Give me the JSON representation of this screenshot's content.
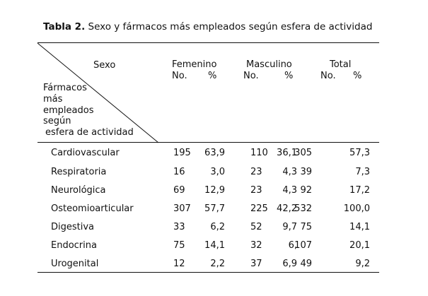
{
  "caption": {
    "label": "Tabla 2.",
    "text": "Sexo y fármacos más empleados según esfera de actividad"
  },
  "header": {
    "corner_top": "Sexo",
    "corner_bottom": [
      "Fármacos",
      "más",
      "empleados",
      "según",
      "esfera de actividad"
    ],
    "groups": [
      {
        "name": "Femenino",
        "no": "No.",
        "pct": "%"
      },
      {
        "name": "Masculino",
        "no": "No.",
        "pct": "%"
      },
      {
        "name": "Total",
        "no": "No.",
        "pct": "%"
      }
    ]
  },
  "rows": [
    {
      "label": "Cardiovascular",
      "cells": [
        "195",
        "63,9",
        "110",
        "36,1",
        "305",
        "57,3"
      ]
    },
    {
      "label": "Respiratoria",
      "cells": [
        "16",
        "3,0",
        "23",
        "4,3",
        "39",
        "7,3"
      ]
    },
    {
      "label": "Neurológica",
      "cells": [
        "69",
        "12,9",
        "23",
        "4,3",
        "92",
        "17,2"
      ]
    },
    {
      "label": "Osteomioarticular",
      "cells": [
        "307",
        "57,7",
        "225",
        "42,2",
        "532",
        "100,0"
      ]
    },
    {
      "label": "Digestiva",
      "cells": [
        "33",
        "6,2",
        "52",
        "9,7",
        "75",
        "14,1"
      ]
    },
    {
      "label": "Endocrina",
      "cells": [
        "75",
        "14,1",
        "32",
        "6,",
        "107",
        "20,1"
      ]
    },
    {
      "label": "Urogenital",
      "cells": [
        "12",
        "2,2",
        "37",
        "6,9",
        "49",
        "9,2"
      ]
    }
  ]
}
